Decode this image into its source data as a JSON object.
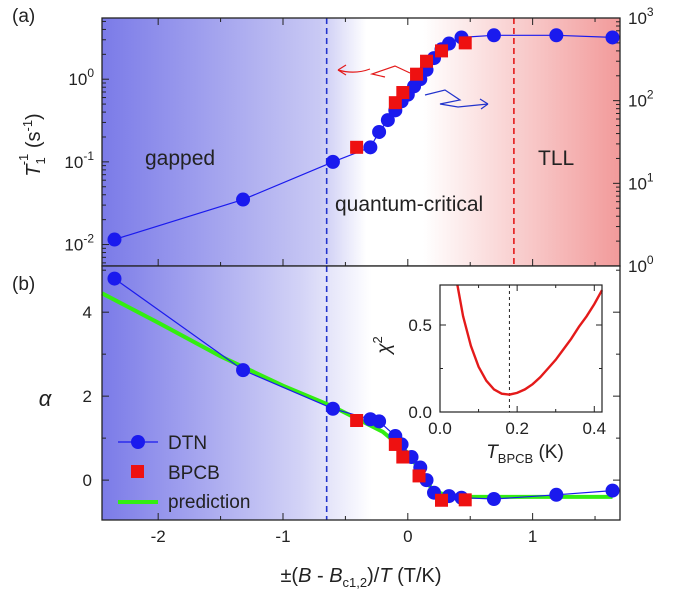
{
  "panel_labels": [
    "(a)",
    "(b)"
  ],
  "region_labels": {
    "gapped": "gapped",
    "qc": "quantum-critical",
    "tll": "TLL"
  },
  "axes": {
    "x": {
      "label_prefix": "±(",
      "label_B": "B",
      "label_minus": " - ",
      "label_Bc": "B",
      "label_Bc_sub": "c1,2",
      "label_mid": ")/",
      "label_T": "T",
      "label_unit": " (T/K)"
    },
    "a_left": {
      "label_T": "T",
      "label_sub": "1",
      "label_sup": "-1",
      "label_unit": " (s",
      "label_unit_sup": "-1",
      "label_close": ")"
    },
    "b_left": {
      "label": "α"
    }
  },
  "legend": {
    "dtn": "DTN",
    "bpcb": "BPCB",
    "prediction": "prediction"
  },
  "inset_labels": {
    "ylabel": "χ",
    "ylabel_sup": "2",
    "xlabel_T": "T",
    "xlabel_sub": "BPCB",
    "xlabel_unit": " (K)"
  },
  "colors": {
    "dtn": "#1a1aee",
    "bpcb": "#ee1111",
    "prediction": "#33ee11",
    "gapped_bg": "#7b7be8",
    "tll_bg": "#f29a9a",
    "dashed_blue": "#2233cc",
    "dashed_red": "#e41a1a",
    "inset_curve": "#e41a1a"
  },
  "chart_data": [
    {
      "type": "scatter",
      "panel": "(a)",
      "x_scale": "linear",
      "xlim": [
        -2.45,
        1.7
      ],
      "xticks": [
        -2,
        -1,
        0,
        1
      ],
      "y_scale": "log",
      "ylim": [
        0.0055,
        5.5
      ],
      "yticks": [
        0.01,
        0.1,
        1
      ],
      "ytick_labels": [
        [
          "10",
          "-2"
        ],
        [
          "10",
          "-1"
        ],
        [
          "10",
          "0"
        ]
      ],
      "y2_scale": "log",
      "y2lim": [
        1,
        1000
      ],
      "y2ticks": [
        1,
        10,
        100,
        1000
      ],
      "y2tick_labels": [
        [
          "10",
          "0"
        ],
        [
          "10",
          "1"
        ],
        [
          "10",
          "2"
        ],
        [
          "10",
          "3"
        ]
      ],
      "dashed_lines": [
        {
          "x": -0.65,
          "color": "dashed_blue"
        },
        {
          "x": 0.85,
          "color": "dashed_red"
        }
      ],
      "series": [
        {
          "name": "DTN",
          "marker": "circle",
          "connected": true,
          "x": [
            -2.35,
            -1.32,
            -0.6,
            -0.3,
            -0.23,
            -0.16,
            -0.1,
            -0.05,
            0.0,
            0.05,
            0.1,
            0.15,
            0.21,
            0.27,
            0.33,
            0.43,
            0.69,
            1.19,
            1.64
          ],
          "y": [
            0.0115,
            0.035,
            0.1,
            0.15,
            0.23,
            0.32,
            0.42,
            0.54,
            0.65,
            0.82,
            1.0,
            1.3,
            1.8,
            2.3,
            2.7,
            3.2,
            3.4,
            3.4,
            3.2
          ]
        },
        {
          "name": "BPCB",
          "marker": "square",
          "connected": false,
          "x": [
            -0.41,
            -0.1,
            -0.04,
            0.07,
            0.15,
            0.27,
            0.46
          ],
          "y": [
            0.15,
            0.52,
            0.69,
            1.15,
            1.65,
            2.2,
            2.75
          ]
        }
      ],
      "annotations": [
        {
          "type": "arrow",
          "color": "dashed_red",
          "direction": "left"
        },
        {
          "type": "arrow",
          "color": "dashed_blue",
          "direction": "right"
        }
      ]
    },
    {
      "type": "scatter",
      "panel": "(b)",
      "x_scale": "linear",
      "xlim": [
        -2.45,
        1.7
      ],
      "xticks": [
        -2,
        -1,
        0,
        1
      ],
      "xtick_labels": [
        "-2",
        "-1",
        "0",
        "1"
      ],
      "y_scale": "linear",
      "ylim": [
        -0.95,
        5.1
      ],
      "yticks": [
        0,
        2,
        4
      ],
      "ytick_labels": [
        "0",
        "2",
        "4"
      ],
      "dashed_lines": [
        {
          "x": -0.65,
          "color": "dashed_blue"
        }
      ],
      "series": [
        {
          "name": "DTN",
          "marker": "circle",
          "connected": true,
          "x": [
            -2.35,
            -1.32,
            -0.6,
            -0.3,
            -0.23,
            -0.1,
            -0.05,
            0.03,
            0.1,
            0.15,
            0.21,
            0.33,
            0.43,
            0.69,
            1.19,
            1.64
          ],
          "y": [
            4.8,
            2.62,
            1.7,
            1.45,
            1.4,
            1.05,
            0.85,
            0.55,
            0.3,
            0.0,
            -0.3,
            -0.38,
            -0.42,
            -0.45,
            -0.35,
            -0.25
          ]
        },
        {
          "name": "BPCB",
          "marker": "square",
          "connected": false,
          "x": [
            -0.41,
            -0.1,
            -0.04,
            0.09,
            0.27,
            0.46
          ],
          "y": [
            1.42,
            0.85,
            0.55,
            0.1,
            -0.48,
            -0.47
          ]
        },
        {
          "name": "prediction",
          "marker": "none",
          "connected": true,
          "x": [
            -2.45,
            -2.0,
            -1.5,
            -1.0,
            -0.6,
            -0.2,
            0.0,
            0.1,
            0.2,
            0.3,
            0.5,
            1.0,
            1.64
          ],
          "y": [
            4.45,
            3.75,
            2.95,
            2.25,
            1.75,
            1.15,
            0.65,
            0.22,
            -0.25,
            -0.35,
            -0.4,
            -0.4,
            -0.4
          ]
        }
      ]
    },
    {
      "type": "line",
      "panel": "(b) inset",
      "xlim": [
        0,
        0.42
      ],
      "xticks": [
        0.0,
        0.2,
        0.4
      ],
      "xtick_labels": [
        "0.0",
        "0.2",
        "0.4"
      ],
      "ylim": [
        0,
        0.73
      ],
      "yticks": [
        0.0,
        0.5
      ],
      "ytick_labels": [
        "0.0",
        "0.5"
      ],
      "dashed_lines": [
        {
          "x": 0.18
        }
      ],
      "series": [
        {
          "name": "",
          "marker": "none",
          "connected": true,
          "x": [
            0.045,
            0.06,
            0.08,
            0.1,
            0.12,
            0.14,
            0.16,
            0.18,
            0.2,
            0.22,
            0.24,
            0.26,
            0.28,
            0.3,
            0.32,
            0.34,
            0.36,
            0.38,
            0.4,
            0.42
          ],
          "y": [
            0.73,
            0.55,
            0.38,
            0.26,
            0.18,
            0.13,
            0.105,
            0.1,
            0.11,
            0.13,
            0.16,
            0.2,
            0.25,
            0.3,
            0.36,
            0.42,
            0.49,
            0.55,
            0.62,
            0.7
          ]
        }
      ]
    }
  ]
}
